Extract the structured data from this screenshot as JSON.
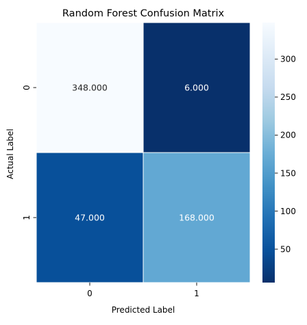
{
  "chart_data": {
    "type": "heatmap",
    "title": "Random Forest Confusion Matrix",
    "xlabel": "Predicted Label",
    "ylabel": "Actual Label",
    "x_categories": [
      "0",
      "1"
    ],
    "y_categories": [
      "0",
      "1"
    ],
    "values": [
      [
        348,
        6
      ],
      [
        47,
        168
      ]
    ],
    "cell_labels": [
      [
        "348.000",
        "6.000"
      ],
      [
        "47.000",
        "168.000"
      ]
    ],
    "colormap": "Blues",
    "colorbar": {
      "range": [
        6,
        348
      ],
      "ticks": [
        50,
        100,
        150,
        200,
        250,
        300
      ],
      "tick_labels": [
        "50",
        "100",
        "150",
        "200",
        "250",
        "300"
      ]
    },
    "colors": {
      "low": "#08306b",
      "mid": "#6baed6",
      "high": "#f7fbff",
      "text_on_light": "#262626",
      "text_on_dark": "#ffffff",
      "cell_border": "#ffffff"
    }
  }
}
